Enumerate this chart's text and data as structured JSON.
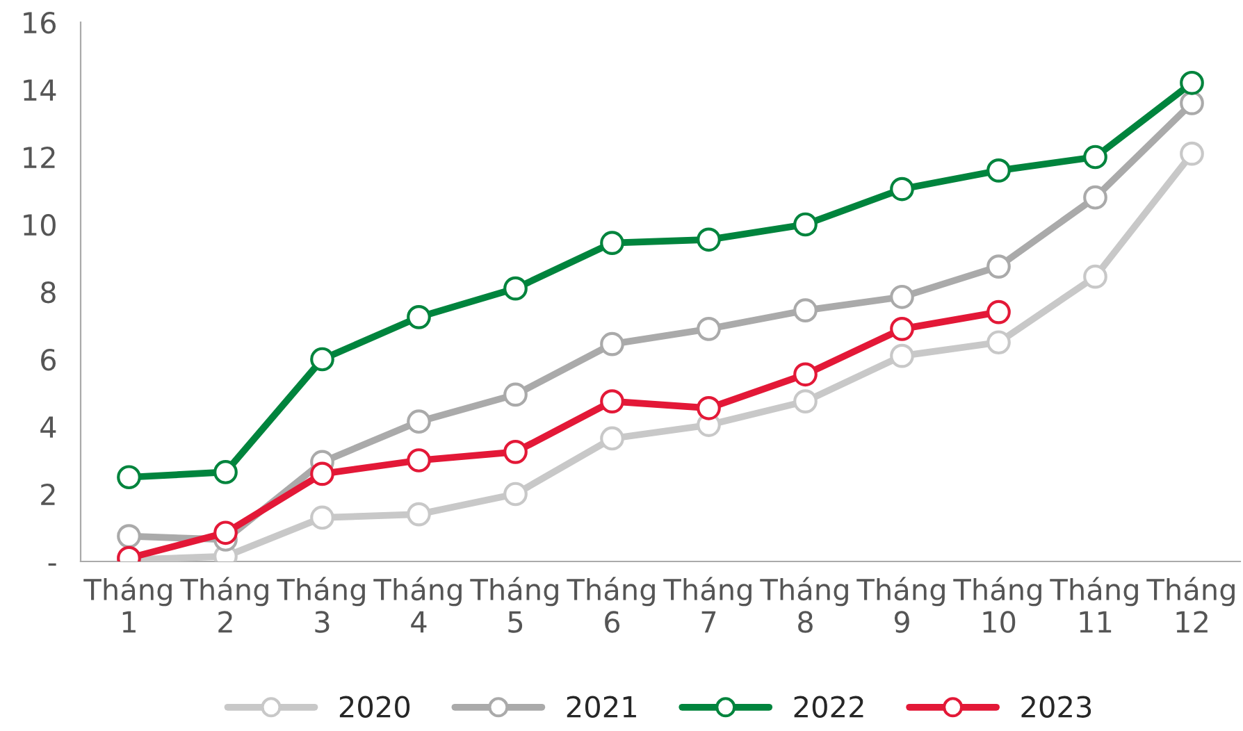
{
  "chart_data": {
    "type": "line",
    "categories": [
      "Tháng\n1",
      "Tháng\n2",
      "Tháng\n3",
      "Tháng\n4",
      "Tháng\n5",
      "Tháng\n6",
      "Tháng\n7",
      "Tháng\n8",
      "Tháng\n9",
      "Tháng\n10",
      "Tháng\n11",
      "Tháng\n12"
    ],
    "series": [
      {
        "name": "2020",
        "color": "#c8c8c8",
        "values": [
          0.05,
          0.15,
          1.3,
          1.4,
          2.0,
          3.65,
          4.05,
          4.75,
          6.1,
          6.5,
          8.45,
          12.1
        ]
      },
      {
        "name": "2021",
        "color": "#aaaaaa",
        "values": [
          0.75,
          0.65,
          2.95,
          4.15,
          4.95,
          6.45,
          6.9,
          7.45,
          7.85,
          8.75,
          10.8,
          13.6
        ]
      },
      {
        "name": "2022",
        "color": "#00843d",
        "values": [
          2.5,
          2.65,
          6.0,
          7.25,
          8.1,
          9.45,
          9.55,
          10.0,
          11.05,
          11.6,
          12.0,
          14.2
        ]
      },
      {
        "name": "2023",
        "color": "#e31837",
        "values": [
          0.1,
          0.85,
          2.6,
          3.0,
          3.25,
          4.75,
          4.55,
          5.55,
          6.9,
          7.4,
          null,
          null
        ]
      }
    ],
    "ylim": [
      0,
      16
    ],
    "yticks": [
      {
        "value": 0,
        "label": "-"
      },
      2,
      4,
      6,
      8,
      10,
      12,
      14,
      16
    ],
    "grid": false,
    "legend": "bottom",
    "marker": "circle",
    "line_style": "solid"
  }
}
